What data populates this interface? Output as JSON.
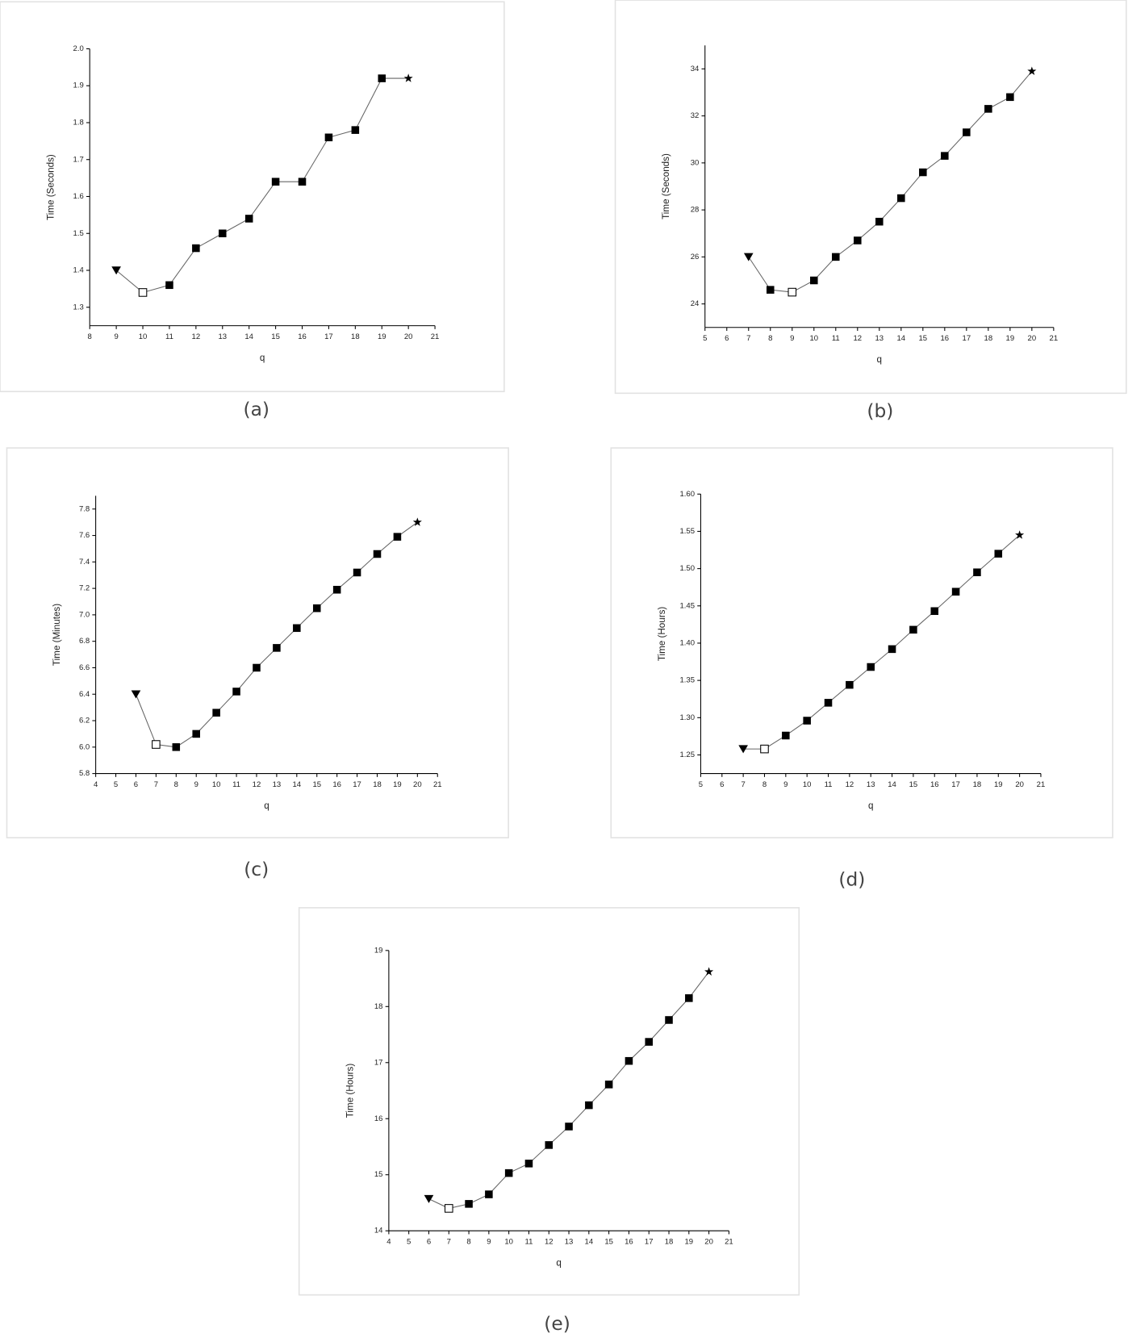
{
  "chart_data": [
    {
      "type": "line",
      "caption": "(a)",
      "x_label": "q",
      "y_label": "Time (Seconds)",
      "x": [
        9,
        10,
        11,
        12,
        13,
        14,
        15,
        16,
        17,
        18,
        19,
        20
      ],
      "series": [
        {
          "color": "#000000",
          "values": [
            1.4,
            1.34,
            1.36,
            1.46,
            1.5,
            1.54,
            1.64,
            1.64,
            1.76,
            1.78,
            1.92,
            1.92
          ],
          "markers": [
            "triangle-down",
            "open-square",
            "square",
            "square",
            "square",
            "square",
            "square",
            "square",
            "square",
            "square",
            "square",
            "star"
          ]
        }
      ],
      "xlim": [
        8,
        21
      ],
      "xticks": [
        8,
        9,
        10,
        11,
        12,
        13,
        14,
        15,
        16,
        17,
        18,
        19,
        20,
        21
      ],
      "ylim": [
        1.25,
        2.0
      ],
      "yticks": [
        1.3,
        1.4,
        1.5,
        1.6,
        1.7,
        1.8,
        1.9,
        {
          "value": 2.0,
          "label": "2.0"
        }
      ]
    },
    {
      "type": "line",
      "caption": "(b)",
      "x_label": "q",
      "y_label": "Time (Seconds)",
      "x": [
        7,
        8,
        9,
        10,
        11,
        12,
        13,
        14,
        15,
        16,
        17,
        18,
        19,
        20
      ],
      "series": [
        {
          "color": "#000000",
          "values": [
            26.0,
            24.6,
            24.5,
            25.0,
            26.0,
            26.7,
            27.5,
            28.5,
            29.6,
            30.3,
            31.3,
            32.3,
            32.8,
            33.9
          ],
          "markers": [
            "triangle-down",
            "square",
            "open-square",
            "square",
            "square",
            "square",
            "square",
            "square",
            "square",
            "square",
            "square",
            "square",
            "square",
            "star"
          ]
        }
      ],
      "xlim": [
        5,
        21
      ],
      "xticks": [
        5,
        6,
        7,
        8,
        9,
        10,
        11,
        12,
        13,
        14,
        15,
        16,
        17,
        18,
        19,
        20,
        21
      ],
      "ylim": [
        23,
        35
      ],
      "yticks": [
        24,
        26,
        28,
        30,
        32,
        34
      ]
    },
    {
      "type": "line",
      "caption": "(c)",
      "x_label": "q",
      "y_label": "Time (Minutes)",
      "x": [
        6,
        7,
        8,
        9,
        10,
        11,
        12,
        13,
        14,
        15,
        16,
        17,
        18,
        19,
        20
      ],
      "series": [
        {
          "color": "#000000",
          "values": [
            6.4,
            6.02,
            6.0,
            6.1,
            6.26,
            6.42,
            6.6,
            6.75,
            6.9,
            7.05,
            7.19,
            7.32,
            7.46,
            7.59,
            7.7
          ],
          "markers": [
            "triangle-down",
            "open-square",
            "square",
            "square",
            "square",
            "square",
            "square",
            "square",
            "square",
            "square",
            "square",
            "square",
            "square",
            "square",
            "star"
          ]
        }
      ],
      "xlim": [
        4,
        21
      ],
      "xticks": [
        4,
        5,
        6,
        7,
        8,
        9,
        10,
        11,
        12,
        13,
        14,
        15,
        16,
        17,
        18,
        19,
        20,
        21
      ],
      "ylim": [
        5.8,
        7.9
      ],
      "yticks": [
        5.8,
        {
          "value": 6.0,
          "label": "6.0"
        },
        6.2,
        6.4,
        6.6,
        6.8,
        {
          "value": 7.0,
          "label": "7.0"
        },
        7.2,
        7.4,
        7.6,
        7.8
      ]
    },
    {
      "type": "line",
      "caption": "(d)",
      "x_label": "q",
      "y_label": "Time (Hours)",
      "x": [
        7,
        8,
        9,
        10,
        11,
        12,
        13,
        14,
        15,
        16,
        17,
        18,
        19,
        20
      ],
      "series": [
        {
          "color": "#000000",
          "values": [
            1.258,
            1.258,
            1.276,
            1.296,
            1.32,
            1.344,
            1.368,
            1.392,
            1.418,
            1.443,
            1.469,
            1.495,
            1.52,
            1.545
          ],
          "markers": [
            "triangle-down",
            "open-square",
            "square",
            "square",
            "square",
            "square",
            "square",
            "square",
            "square",
            "square",
            "square",
            "square",
            "square",
            "star"
          ]
        }
      ],
      "xlim": [
        5,
        21
      ],
      "xticks": [
        5,
        6,
        7,
        8,
        9,
        10,
        11,
        12,
        13,
        14,
        15,
        16,
        17,
        18,
        19,
        20,
        21
      ],
      "ylim": [
        1.225,
        1.6
      ],
      "yticks": [
        1.25,
        {
          "value": 1.3,
          "label": "1.30"
        },
        1.35,
        {
          "value": 1.4,
          "label": "1.40"
        },
        1.45,
        {
          "value": 1.5,
          "label": "1.50"
        },
        1.55,
        {
          "value": 1.6,
          "label": "1.60"
        }
      ]
    },
    {
      "type": "line",
      "caption": "(e)",
      "x_label": "q",
      "y_label": "Time (Hours)",
      "x": [
        6,
        7,
        8,
        9,
        10,
        11,
        12,
        13,
        14,
        15,
        16,
        17,
        18,
        19,
        20
      ],
      "series": [
        {
          "color": "#000000",
          "values": [
            14.57,
            14.4,
            14.48,
            14.65,
            15.03,
            15.2,
            15.53,
            15.86,
            16.24,
            16.61,
            17.03,
            17.37,
            17.76,
            18.15,
            18.62
          ],
          "markers": [
            "triangle-down",
            "open-square",
            "square",
            "square",
            "square",
            "square",
            "square",
            "square",
            "square",
            "square",
            "square",
            "square",
            "square",
            "square",
            "star"
          ]
        }
      ],
      "xlim": [
        4,
        21
      ],
      "xticks": [
        4,
        5,
        6,
        7,
        8,
        9,
        10,
        11,
        12,
        13,
        14,
        15,
        16,
        17,
        18,
        19,
        20,
        21
      ],
      "ylim": [
        14,
        19
      ],
      "yticks": [
        14,
        15,
        16,
        17,
        18,
        19
      ]
    }
  ]
}
